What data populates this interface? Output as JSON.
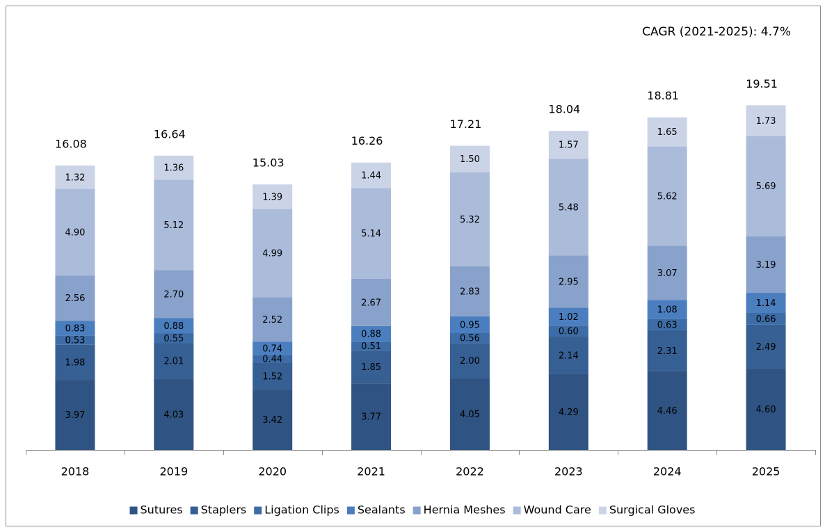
{
  "chart_data": {
    "type": "stacked_bar",
    "annotation": "CAGR (2021-2025): 4.7%",
    "categories": [
      "2018",
      "2019",
      "2020",
      "2021",
      "2022",
      "2023",
      "2024",
      "2025"
    ],
    "series": [
      {
        "name": "Sutures",
        "color": "#2f5382",
        "values": [
          3.97,
          4.03,
          3.42,
          3.77,
          4.05,
          4.29,
          4.46,
          4.6
        ],
        "value_labels": [
          "3.97",
          "4.03",
          "3.42",
          "3.77",
          "4.05",
          "4.29",
          "4.46",
          "4.60"
        ]
      },
      {
        "name": "Staplers",
        "color": "#365f93",
        "values": [
          1.98,
          2.01,
          1.52,
          1.85,
          2.0,
          2.14,
          2.31,
          2.49
        ],
        "value_labels": [
          "1.98",
          "2.01",
          "1.52",
          "1.85",
          "2.00",
          "2.14",
          "2.31",
          "2.49"
        ]
      },
      {
        "name": "Ligation Clips",
        "color": "#3d6ca6",
        "values": [
          0.53,
          0.55,
          0.44,
          0.51,
          0.56,
          0.6,
          0.63,
          0.66
        ],
        "value_labels": [
          "0.53",
          "0.55",
          "0.44",
          "0.51",
          "0.56",
          "0.60",
          "0.63",
          "0.66"
        ]
      },
      {
        "name": "Sealants",
        "color": "#4a7ebf",
        "values": [
          0.83,
          0.88,
          0.74,
          0.88,
          0.95,
          1.02,
          1.08,
          1.14
        ],
        "value_labels": [
          "0.83",
          "0.88",
          "0.74",
          "0.88",
          "0.95",
          "1.02",
          "1.08",
          "1.14"
        ]
      },
      {
        "name": "Hernia Meshes",
        "color": "#89a2cc",
        "values": [
          2.56,
          2.7,
          2.52,
          2.67,
          2.83,
          2.95,
          3.07,
          3.19
        ],
        "value_labels": [
          "2.56",
          "2.70",
          "2.52",
          "2.67",
          "2.83",
          "2.95",
          "3.07",
          "3.19"
        ]
      },
      {
        "name": "Wound Care",
        "color": "#abbbda",
        "values": [
          4.9,
          5.12,
          4.99,
          5.14,
          5.32,
          5.48,
          5.62,
          5.69
        ],
        "value_labels": [
          "4.90",
          "5.12",
          "4.99",
          "5.14",
          "5.32",
          "5.48",
          "5.62",
          "5.69"
        ]
      },
      {
        "name": "Surgical Gloves",
        "color": "#cbd4e7",
        "values": [
          1.32,
          1.36,
          1.39,
          1.44,
          1.5,
          1.57,
          1.65,
          1.73
        ],
        "value_labels": [
          "1.32",
          "1.36",
          "1.39",
          "1.44",
          "1.50",
          "1.57",
          "1.65",
          "1.73"
        ]
      }
    ],
    "totals": [
      16.08,
      16.64,
      15.03,
      16.26,
      17.21,
      18.04,
      18.81,
      19.51
    ],
    "ylim": [
      0,
      24
    ],
    "legend": "bottom"
  }
}
